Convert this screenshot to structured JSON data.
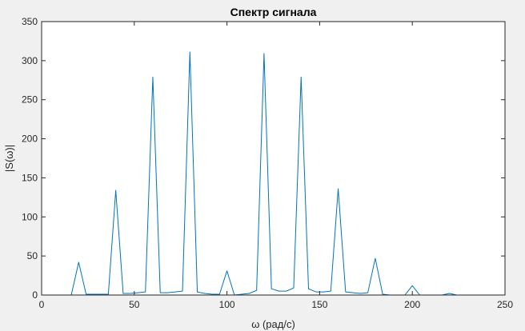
{
  "chart_data": {
    "type": "line",
    "title": "Спектр сигнала",
    "xlabel": "ω (рад/с)",
    "ylabel": "|S(ω)|",
    "xlim": [
      0,
      250
    ],
    "ylim": [
      0,
      350
    ],
    "xticks": [
      0,
      50,
      100,
      150,
      200,
      250
    ],
    "yticks": [
      0,
      50,
      100,
      150,
      200,
      250,
      300,
      350
    ],
    "grid": false,
    "series": [
      {
        "color": "#0072bd",
        "x": [
          0,
          16,
          20,
          24,
          28,
          32,
          36,
          40,
          44,
          48,
          52,
          56,
          60,
          64,
          68,
          72,
          76,
          80,
          84,
          88,
          92,
          96,
          100,
          104,
          108,
          112,
          116,
          120,
          124,
          128,
          132,
          136,
          140,
          144,
          148,
          152,
          156,
          160,
          164,
          168,
          172,
          176,
          180,
          184,
          188,
          192,
          196,
          200,
          204,
          208,
          212,
          216,
          220,
          224,
          228,
          232,
          236,
          240,
          244,
          250
        ],
        "y": [
          0,
          0,
          42,
          1,
          1,
          1,
          1,
          134,
          2,
          2,
          3,
          4,
          279,
          3,
          3,
          4,
          5,
          311,
          4,
          2,
          1,
          1,
          31,
          0,
          1,
          2,
          6,
          309,
          8,
          5,
          5,
          9,
          279,
          8,
          4,
          4,
          5,
          136,
          4,
          3,
          2,
          3,
          47,
          1,
          0,
          0,
          0,
          12,
          0,
          0,
          0,
          0,
          2,
          0,
          0,
          0,
          0,
          0,
          0,
          0
        ]
      }
    ]
  }
}
